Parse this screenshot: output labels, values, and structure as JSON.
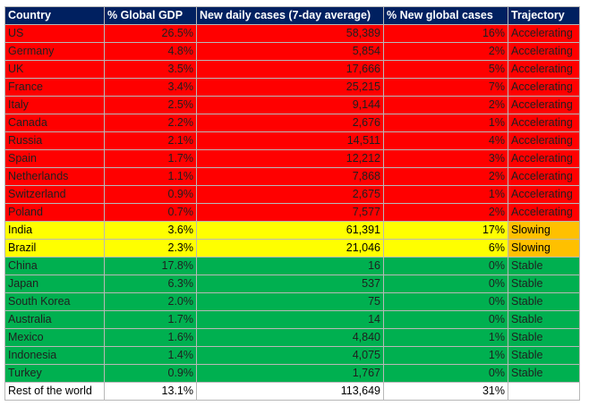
{
  "header": [
    "Country",
    "% Global GDP",
    "New daily cases (7-day average)",
    "% New global cases",
    "Trajectory"
  ],
  "rows": [
    {
      "country": "US",
      "gdp": "26.5%",
      "cases": "58,389",
      "share": "16%",
      "trajectory": "Accelerating",
      "status": "accel"
    },
    {
      "country": "Germany",
      "gdp": "4.8%",
      "cases": "5,854",
      "share": "2%",
      "trajectory": "Accelerating",
      "status": "accel"
    },
    {
      "country": "UK",
      "gdp": "3.5%",
      "cases": "17,666",
      "share": "5%",
      "trajectory": "Accelerating",
      "status": "accel"
    },
    {
      "country": "France",
      "gdp": "3.4%",
      "cases": "25,215",
      "share": "7%",
      "trajectory": "Accelerating",
      "status": "accel"
    },
    {
      "country": "Italy",
      "gdp": "2.5%",
      "cases": "9,144",
      "share": "2%",
      "trajectory": "Accelerating",
      "status": "accel"
    },
    {
      "country": "Canada",
      "gdp": "2.2%",
      "cases": "2,676",
      "share": "1%",
      "trajectory": "Accelerating",
      "status": "accel"
    },
    {
      "country": "Russia",
      "gdp": "2.1%",
      "cases": "14,511",
      "share": "4%",
      "trajectory": "Accelerating",
      "status": "accel"
    },
    {
      "country": "Spain",
      "gdp": "1.7%",
      "cases": "12,212",
      "share": "3%",
      "trajectory": "Accelerating",
      "status": "accel"
    },
    {
      "country": "Netherlands",
      "gdp": "1.1%",
      "cases": "7,868",
      "share": "2%",
      "trajectory": "Accelerating",
      "status": "accel"
    },
    {
      "country": "Switzerland",
      "gdp": "0.9%",
      "cases": "2,675",
      "share": "1%",
      "trajectory": "Accelerating",
      "status": "accel"
    },
    {
      "country": "Poland",
      "gdp": "0.7%",
      "cases": "7,577",
      "share": "2%",
      "trajectory": "Accelerating",
      "status": "accel"
    },
    {
      "country": "India",
      "gdp": "3.6%",
      "cases": "61,391",
      "share": "17%",
      "trajectory": "Slowing",
      "status": "slow"
    },
    {
      "country": "Brazil",
      "gdp": "2.3%",
      "cases": "21,046",
      "share": "6%",
      "trajectory": "Slowing",
      "status": "slow"
    },
    {
      "country": "China",
      "gdp": "17.8%",
      "cases": "16",
      "share": "0%",
      "trajectory": "Stable",
      "status": "stable"
    },
    {
      "country": "Japan",
      "gdp": "6.3%",
      "cases": "537",
      "share": "0%",
      "trajectory": "Stable",
      "status": "stable"
    },
    {
      "country": "South Korea",
      "gdp": "2.0%",
      "cases": "75",
      "share": "0%",
      "trajectory": "Stable",
      "status": "stable"
    },
    {
      "country": "Australia",
      "gdp": "1.7%",
      "cases": "14",
      "share": "0%",
      "trajectory": "Stable",
      "status": "stable"
    },
    {
      "country": "Mexico",
      "gdp": "1.6%",
      "cases": "4,840",
      "share": "1%",
      "trajectory": "Stable",
      "status": "stable"
    },
    {
      "country": "Indonesia",
      "gdp": "1.4%",
      "cases": "4,075",
      "share": "1%",
      "trajectory": "Stable",
      "status": "stable"
    },
    {
      "country": "Turkey",
      "gdp": "0.9%",
      "cases": "1,767",
      "share": "0%",
      "trajectory": "Stable",
      "status": "stable"
    },
    {
      "country": "Rest of the world",
      "gdp": "13.1%",
      "cases": "113,649",
      "share": "31%",
      "trajectory": "",
      "status": "rest"
    }
  ],
  "colors": {
    "header": "#002060",
    "accelerating": "#ff0000",
    "slowing": "#ffff00",
    "slowing_trajectory": "#ffc000",
    "stable": "#00b050"
  }
}
